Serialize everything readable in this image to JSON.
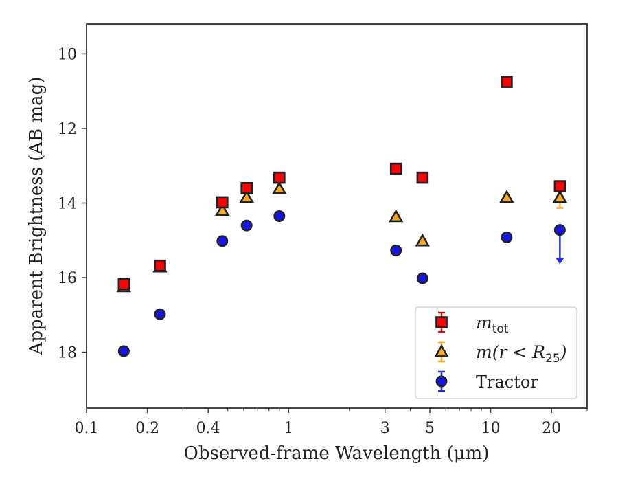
{
  "chart_data": {
    "type": "scatter",
    "xlabel": "Observed-frame Wavelength (μm)",
    "ylabel": "Apparent Brightness (AB mag)",
    "xscale": "log",
    "xlim": [
      0.1,
      30
    ],
    "ylim": [
      19.5,
      9.2
    ],
    "y_inverted": true,
    "grid": false,
    "legend_position": "lower-right",
    "xticks": [
      {
        "value": 0.1,
        "label": "0.1"
      },
      {
        "value": 0.2,
        "label": "0.2"
      },
      {
        "value": 0.4,
        "label": "0.4"
      },
      {
        "value": 1,
        "label": "1"
      },
      {
        "value": 3,
        "label": "3"
      },
      {
        "value": 5,
        "label": "5"
      },
      {
        "value": 10,
        "label": "10"
      },
      {
        "value": 20,
        "label": "20"
      }
    ],
    "yticks": [
      {
        "value": 10,
        "label": "10"
      },
      {
        "value": 12,
        "label": "12"
      },
      {
        "value": 14,
        "label": "14"
      },
      {
        "value": 16,
        "label": "16"
      },
      {
        "value": 18,
        "label": "18"
      }
    ],
    "series": [
      {
        "key": "tractor",
        "label_main": "Tractor",
        "label_sub": "",
        "label_tail": "",
        "marker": "circle",
        "color": "#1515e8",
        "errcolor": "#2a2ae0",
        "x": [
          0.153,
          0.231,
          0.47,
          0.62,
          0.9,
          3.4,
          4.6,
          12.0,
          22.0
        ],
        "y": [
          17.97,
          16.98,
          15.02,
          14.6,
          14.35,
          15.27,
          16.02,
          14.92,
          14.72
        ],
        "err": [
          0.05,
          0.05,
          0.03,
          0.03,
          0.03,
          0.05,
          0.06,
          0.06,
          0.05
        ],
        "upper_limit": [
          false,
          false,
          false,
          false,
          false,
          false,
          false,
          false,
          true
        ]
      },
      {
        "key": "r25",
        "label_main": "m(r < R",
        "label_sub": "25",
        "label_tail": ")",
        "marker": "triangle",
        "color": "#f5a623",
        "errcolor": "#f5a623",
        "x": [
          0.153,
          0.231,
          0.47,
          0.62,
          0.9,
          3.4,
          4.6,
          12.0,
          22.0
        ],
        "y": [
          16.25,
          15.72,
          14.2,
          13.85,
          13.62,
          14.37,
          15.02,
          13.85,
          13.85
        ],
        "err": [
          0.05,
          0.05,
          0.03,
          0.03,
          0.03,
          0.05,
          0.06,
          0.06,
          0.28
        ],
        "upper_limit": [
          false,
          false,
          false,
          false,
          false,
          false,
          false,
          false,
          false
        ]
      },
      {
        "key": "total",
        "label_main": "m",
        "label_sub": "tot",
        "label_tail": "",
        "marker": "square",
        "color": "#ff0000",
        "errcolor": "#d01010",
        "x": [
          0.153,
          0.231,
          0.47,
          0.62,
          0.9,
          3.4,
          4.6,
          12.0,
          22.0
        ],
        "y": [
          16.18,
          15.68,
          13.98,
          13.6,
          13.32,
          13.08,
          13.32,
          10.75,
          13.55
        ],
        "err": [
          0.05,
          0.05,
          0.03,
          0.03,
          0.03,
          0.05,
          0.05,
          0.05,
          0.05
        ],
        "upper_limit": [
          false,
          false,
          false,
          false,
          false,
          false,
          false,
          false,
          false
        ]
      }
    ],
    "legend_order": [
      "total",
      "r25",
      "tractor"
    ]
  }
}
